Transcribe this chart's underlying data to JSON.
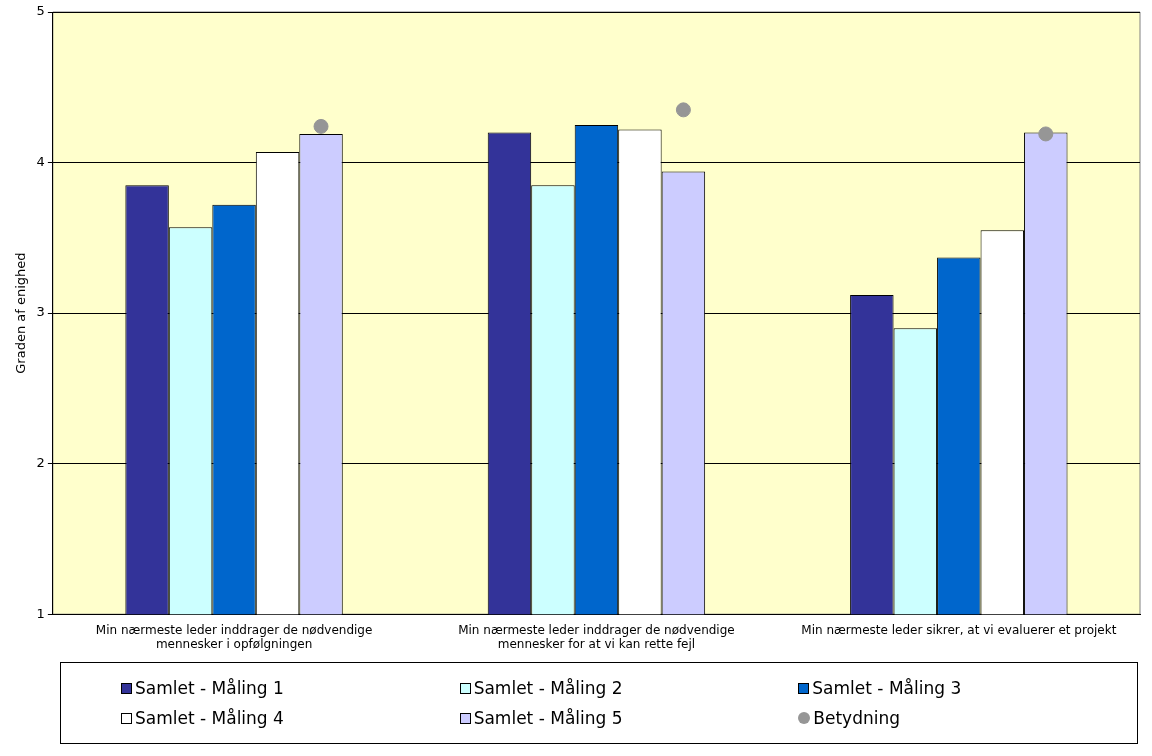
{
  "chart_data": {
    "type": "bar",
    "ylabel": "Graden af enighed",
    "categories": [
      "Min nærmeste leder inddrager de nødvendige mennesker i opfølgningen",
      "Min nærmeste leder inddrager de nødvendige mennesker for at vi kan rette fejl",
      "Min nærmeste leder sikrer, at vi evaluerer et projekt"
    ],
    "series": [
      {
        "name": "Samlet - Måling 1",
        "color": "#333399",
        "values": [
          3.85,
          4.2,
          3.12
        ]
      },
      {
        "name": "Samlet - Måling 2",
        "color": "#ccffff",
        "values": [
          3.57,
          3.85,
          2.9
        ]
      },
      {
        "name": "Samlet - Måling 3",
        "color": "#0066cc",
        "values": [
          3.72,
          4.25,
          3.37
        ]
      },
      {
        "name": "Samlet - Måling 4",
        "color": "#ffffff",
        "values": [
          4.07,
          4.22,
          3.55
        ]
      },
      {
        "name": "Samlet - Måling 5",
        "color": "#ccccff",
        "values": [
          4.19,
          3.94,
          4.2
        ]
      },
      {
        "name": "Betydning",
        "type": "scatter",
        "color": "#969696",
        "x": [
          "Min nærmeste leder inddrager de nødvendige mennesker i opfølgningen",
          "Min nærmeste leder inddrager de nødvendige mennesker for at vi kan rette fejl",
          "Min nærmeste leder sikrer, at vi evaluerer et projekt"
        ],
        "values": [
          4.24,
          4.35,
          4.19
        ]
      }
    ],
    "ylim": [
      1,
      5
    ],
    "yticks": [
      1,
      2,
      3,
      4,
      5
    ],
    "grid": "y",
    "legend": "bottom",
    "marker": "circle"
  }
}
